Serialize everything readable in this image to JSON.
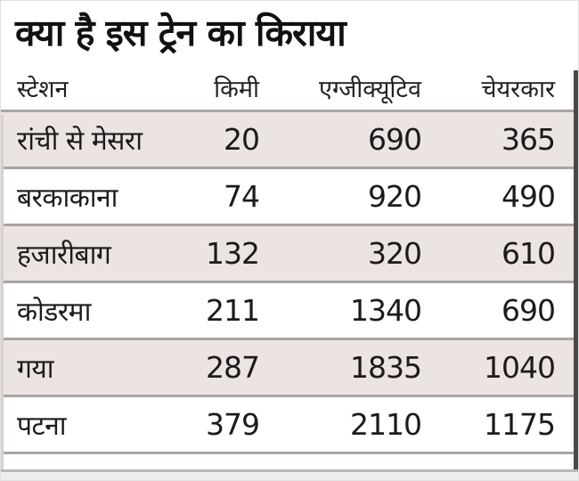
{
  "title": "क्या है इस ट्रेन का किराया",
  "table": {
    "columns": [
      {
        "label": "स्टेशन",
        "align": "left"
      },
      {
        "label": "किमी",
        "align": "right"
      },
      {
        "label": "एग्जीक्यूटिव",
        "align": "right"
      },
      {
        "label": "चेयरकार",
        "align": "right"
      }
    ],
    "rows": [
      {
        "station": "रांची से मेसरा",
        "km": "20",
        "executive": "690",
        "chair_car": "365",
        "shaded": true
      },
      {
        "station": "बरकाकाना",
        "km": "74",
        "executive": "920",
        "chair_car": "490",
        "shaded": false
      },
      {
        "station": "हजारीबाग",
        "km": "132",
        "executive": "320",
        "chair_car": "610",
        "shaded": true
      },
      {
        "station": "कोडरमा",
        "km": "211",
        "executive": "1340",
        "chair_car": "690",
        "shaded": false
      },
      {
        "station": "गया",
        "km": "287",
        "executive": "1835",
        "chair_car": "1040",
        "shaded": true
      },
      {
        "station": "पटना",
        "km": "379",
        "executive": "2110",
        "chair_car": "1175",
        "shaded": false
      }
    ]
  },
  "colors": {
    "text": "#1b1b1b",
    "row_shaded": "#ebe4e2",
    "row_plain": "#ffffff",
    "separator": "#aaa4a4",
    "right_border": "#4a4744"
  },
  "chart_data": {
    "type": "table",
    "title": "क्या है इस ट्रेन का किराया",
    "columns": [
      "स्टेशन",
      "किमी",
      "एग्जीक्यूटिव",
      "चेयरकार"
    ],
    "rows": [
      [
        "रांची से मेसरा",
        20,
        690,
        365
      ],
      [
        "बरकाकाना",
        74,
        920,
        490
      ],
      [
        "हजारीबाग",
        132,
        320,
        610
      ],
      [
        "कोडरमा",
        211,
        1340,
        690
      ],
      [
        "गया",
        287,
        1835,
        1040
      ],
      [
        "पटना",
        379,
        2110,
        1175
      ]
    ]
  }
}
